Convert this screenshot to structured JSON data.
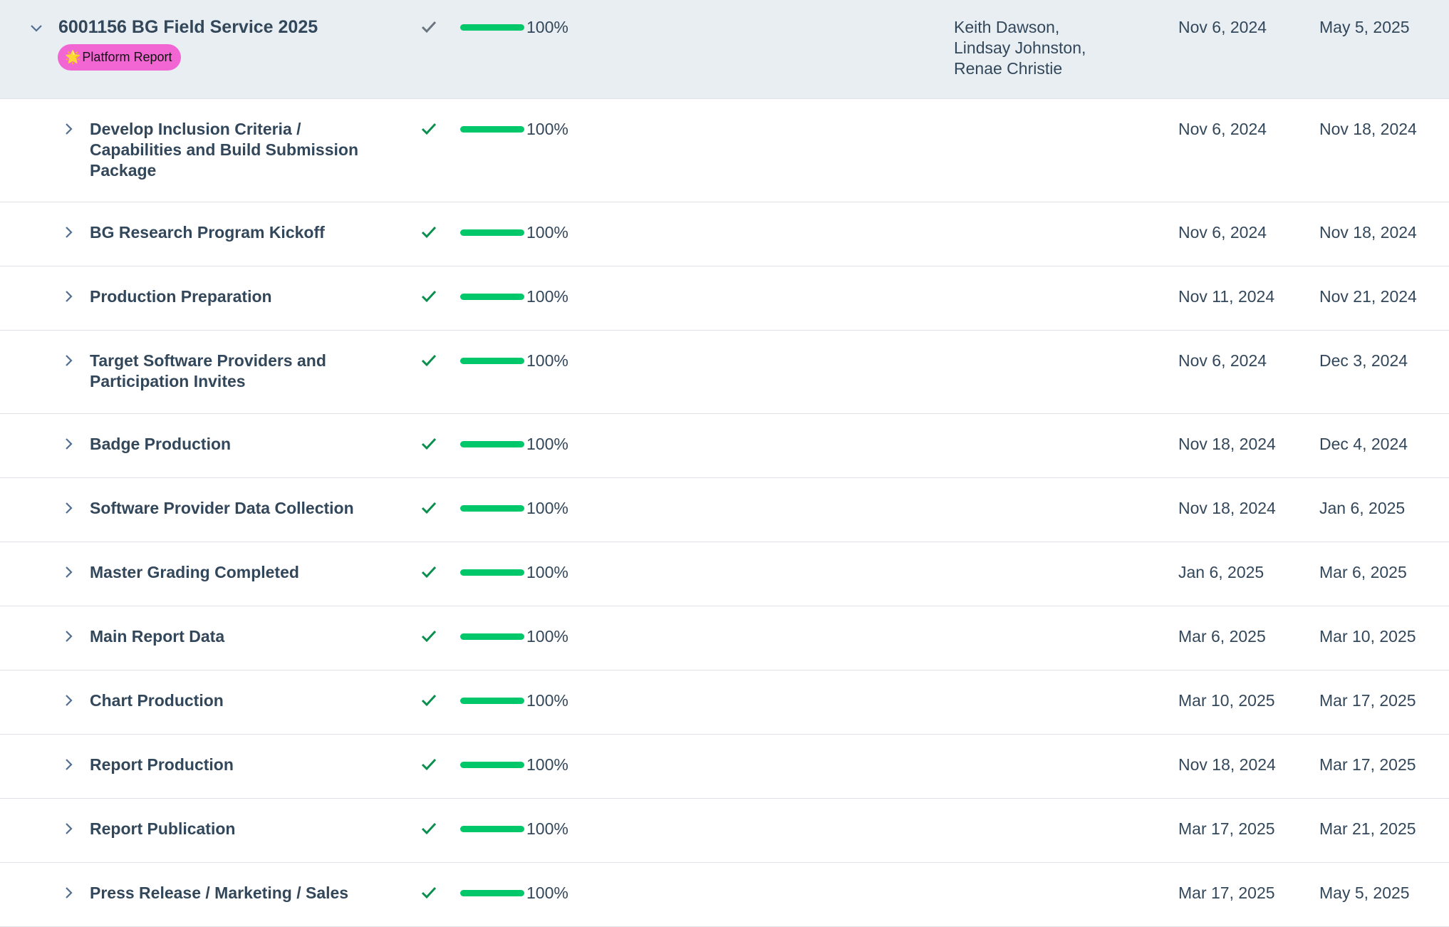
{
  "parent": {
    "title": "6001156 BG Field Service 2025",
    "badge": "Platform Report",
    "progress_percent": 100,
    "progress_label": "100%",
    "assignees": [
      "Keith Dawson,",
      "Lindsay Johnston,",
      "Renae Christie"
    ],
    "start": "Nov 6, 2024",
    "end": "May 5, 2025"
  },
  "colors": {
    "progress": "#00c86a",
    "check": "#0a8f4e",
    "badge": "#f266d4",
    "header_bg": "#e8eef1"
  },
  "tasks": [
    {
      "lines": [
        "Develop Inclusion Criteria /",
        "Capabilities and Build Submission",
        "Package"
      ],
      "progress_label": "100%",
      "start": "Nov 6, 2024",
      "end": "Nov 18, 2024"
    },
    {
      "lines": [
        "BG Research Program Kickoff"
      ],
      "progress_label": "100%",
      "start": "Nov 6, 2024",
      "end": "Nov 18, 2024"
    },
    {
      "lines": [
        "Production Preparation"
      ],
      "progress_label": "100%",
      "start": "Nov 11, 2024",
      "end": "Nov 21, 2024"
    },
    {
      "lines": [
        "Target Software Providers and",
        "Participation Invites"
      ],
      "progress_label": "100%",
      "start": "Nov 6, 2024",
      "end": "Dec 3, 2024"
    },
    {
      "lines": [
        "Badge Production"
      ],
      "progress_label": "100%",
      "start": "Nov 18, 2024",
      "end": "Dec 4, 2024"
    },
    {
      "lines": [
        "Software Provider Data Collection"
      ],
      "progress_label": "100%",
      "start": "Nov 18, 2024",
      "end": "Jan 6, 2025"
    },
    {
      "lines": [
        "Master Grading Completed"
      ],
      "progress_label": "100%",
      "start": "Jan 6, 2025",
      "end": "Mar 6, 2025"
    },
    {
      "lines": [
        "Main Report Data"
      ],
      "progress_label": "100%",
      "start": "Mar 6, 2025",
      "end": "Mar 10, 2025"
    },
    {
      "lines": [
        "Chart Production"
      ],
      "progress_label": "100%",
      "start": "Mar 10, 2025",
      "end": "Mar 17, 2025"
    },
    {
      "lines": [
        "Report Production"
      ],
      "progress_label": "100%",
      "start": "Nov 18, 2024",
      "end": "Mar 17, 2025"
    },
    {
      "lines": [
        "Report Publication"
      ],
      "progress_label": "100%",
      "start": "Mar 17, 2025",
      "end": "Mar 21, 2025"
    },
    {
      "lines": [
        "Press Release / Marketing / Sales"
      ],
      "progress_label": "100%",
      "start": "Mar 17, 2025",
      "end": "May 5, 2025"
    }
  ]
}
